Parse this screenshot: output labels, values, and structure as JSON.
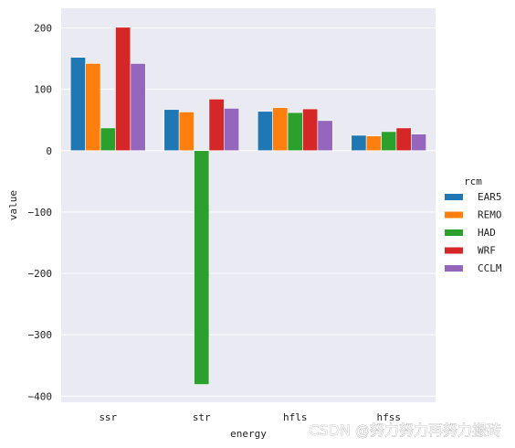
{
  "chart_data": {
    "type": "bar",
    "categories": [
      "ssr",
      "str",
      "hfls",
      "hfss"
    ],
    "series": [
      {
        "name": "EAR5",
        "color": "#1f77b4",
        "values": [
          152,
          67,
          64,
          25
        ]
      },
      {
        "name": "REMO",
        "color": "#ff7f0e",
        "values": [
          142,
          63,
          70,
          24
        ]
      },
      {
        "name": "HAD",
        "color": "#2ca02c",
        "values": [
          37,
          -381,
          62,
          31
        ]
      },
      {
        "name": "WRF",
        "color": "#d62728",
        "values": [
          201,
          84,
          68,
          37
        ]
      },
      {
        "name": "CCLM",
        "color": "#9467bd",
        "values": [
          142,
          69,
          49,
          27
        ]
      }
    ],
    "xlabel": "energy",
    "ylabel": "value",
    "ylim": [
      -410,
      232
    ],
    "yticks": [
      200,
      100,
      0,
      -100,
      -200,
      -300,
      -400
    ],
    "grid": true,
    "legend_title": "rcm",
    "legend_position": "right",
    "background_color": "#eaeaf2"
  },
  "watermark": "CSDN @努力努力再努力搬砖"
}
